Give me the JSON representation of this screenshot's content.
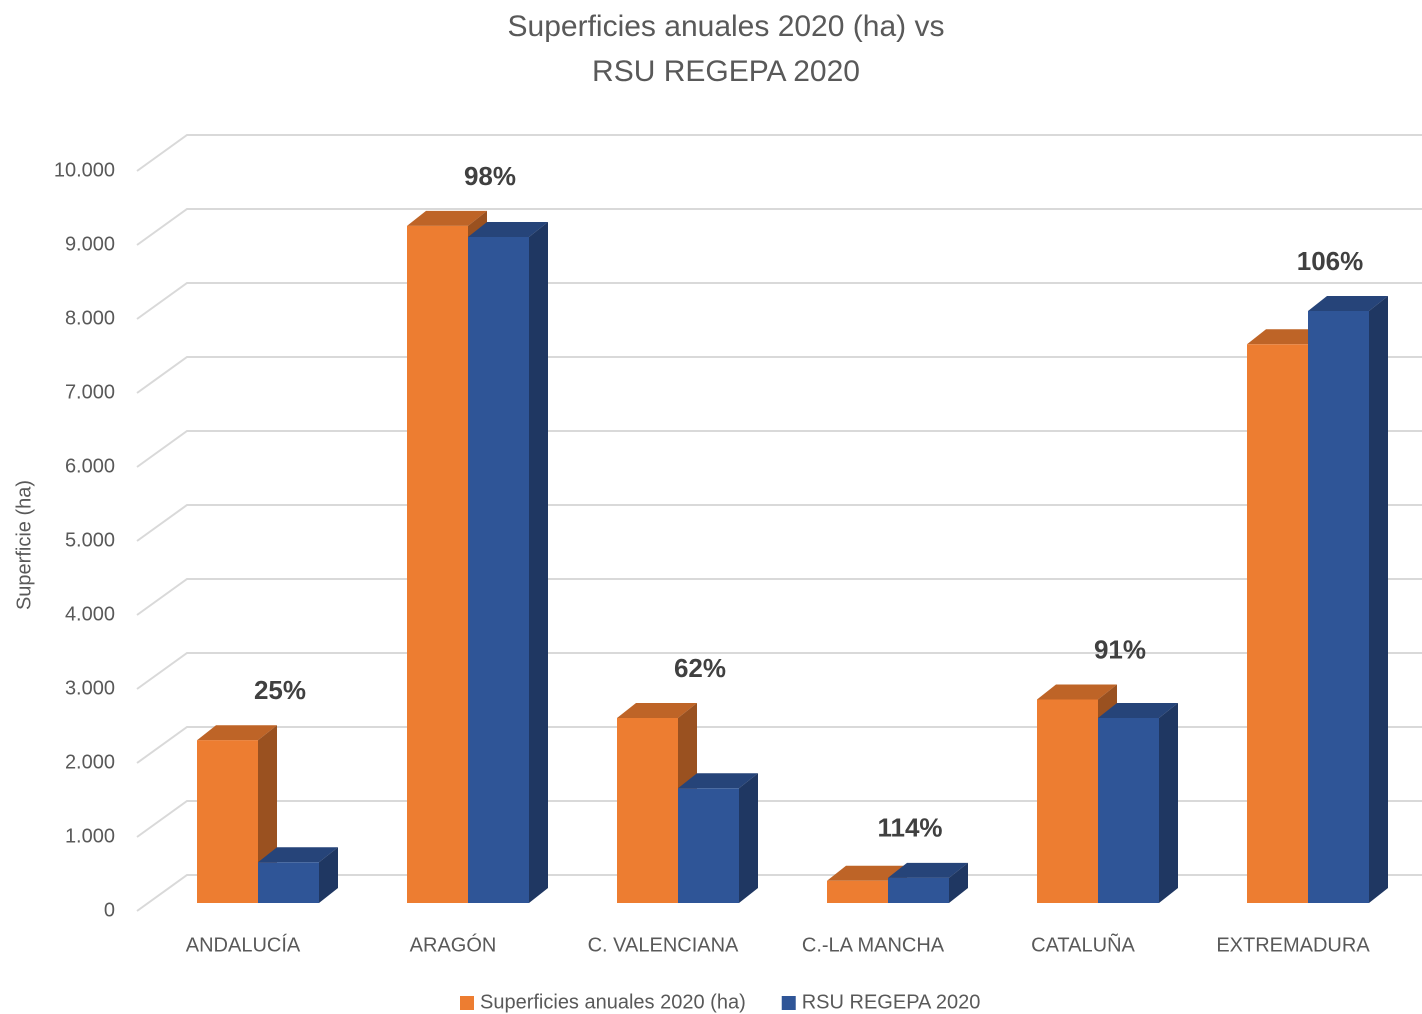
{
  "chart_data": {
    "type": "bar3d",
    "title": [
      "Superficies anuales 2020 (ha) vs",
      "RSU REGEPA 2020"
    ],
    "y_label": "Superficie (ha)",
    "categories": [
      "ANDALUCÍA",
      "ARAGÓN",
      "C. VALENCIANA",
      "C.-LA MANCHA",
      "CATALUÑA",
      "EXTREMADURA"
    ],
    "series": [
      {
        "name": "Superficies anuales 2020 (ha)",
        "color": "#ed7d31",
        "values": [
          2200,
          9150,
          2500,
          300,
          2750,
          7550
        ]
      },
      {
        "name": "RSU REGEPA 2020",
        "color": "#2f5597",
        "values": [
          550,
          9000,
          1550,
          340,
          2500,
          8000
        ]
      }
    ],
    "ratio_labels": [
      "25%",
      "98%",
      "62%",
      "114%",
      "91%",
      "106%"
    ],
    "ylim": [
      0,
      10000
    ],
    "yticks": [
      0,
      {
        "value": 1000,
        "label": "1.000"
      },
      {
        "value": 2000,
        "label": "2.000"
      },
      {
        "value": 3000,
        "label": "3.000"
      },
      {
        "value": 4000,
        "label": "4.000"
      },
      {
        "value": 5000,
        "label": "5.000"
      },
      {
        "value": 6000,
        "label": "6.000"
      },
      {
        "value": 7000,
        "label": "7.000"
      },
      {
        "value": 8000,
        "label": "8.000"
      },
      {
        "value": 9000,
        "label": "9.000"
      },
      {
        "value": 10000,
        "label": "10.000"
      }
    ],
    "grid": true,
    "legend": "bottom"
  }
}
